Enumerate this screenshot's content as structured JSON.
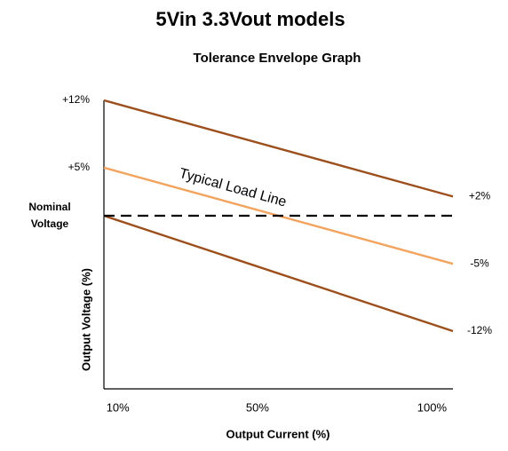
{
  "chart_data": {
    "type": "line",
    "title": "5Vin 3.3Vout models",
    "subtitle": "Tolerance Envelope Graph",
    "x_label": "Output Current (%)",
    "y_label": "Output Voltage (%)",
    "annotation": "Typical Load Line",
    "xlim": [
      6,
      106
    ],
    "xticks": [
      {
        "value": 10,
        "label": "10%"
      },
      {
        "value": 50,
        "label": "50%"
      },
      {
        "value": 100,
        "label": "100%"
      }
    ],
    "ylim": [
      -18,
      12
    ],
    "yticks": [
      {
        "value": 12,
        "label": "+12%"
      },
      {
        "value": 5,
        "label": "+5%"
      },
      {
        "value": 0,
        "label": "Nominal Voltage"
      }
    ],
    "y2lim": [
      -18,
      12
    ],
    "y2ticks": [
      {
        "value": 2,
        "label": "+2%"
      },
      {
        "value": -5,
        "label": "-5%"
      },
      {
        "value": -12,
        "label": "-12%"
      }
    ],
    "x": [
      6,
      106
    ],
    "series": [
      {
        "color": "#9c4f1c",
        "values": [
          12,
          2
        ]
      },
      {
        "color": "#f2a35e",
        "values": [
          5,
          -5
        ]
      },
      {
        "color": "#9c4f1c",
        "values": [
          0,
          -12
        ]
      },
      {
        "color": "#000000",
        "dashed": true,
        "values": [
          0,
          0
        ]
      }
    ]
  }
}
